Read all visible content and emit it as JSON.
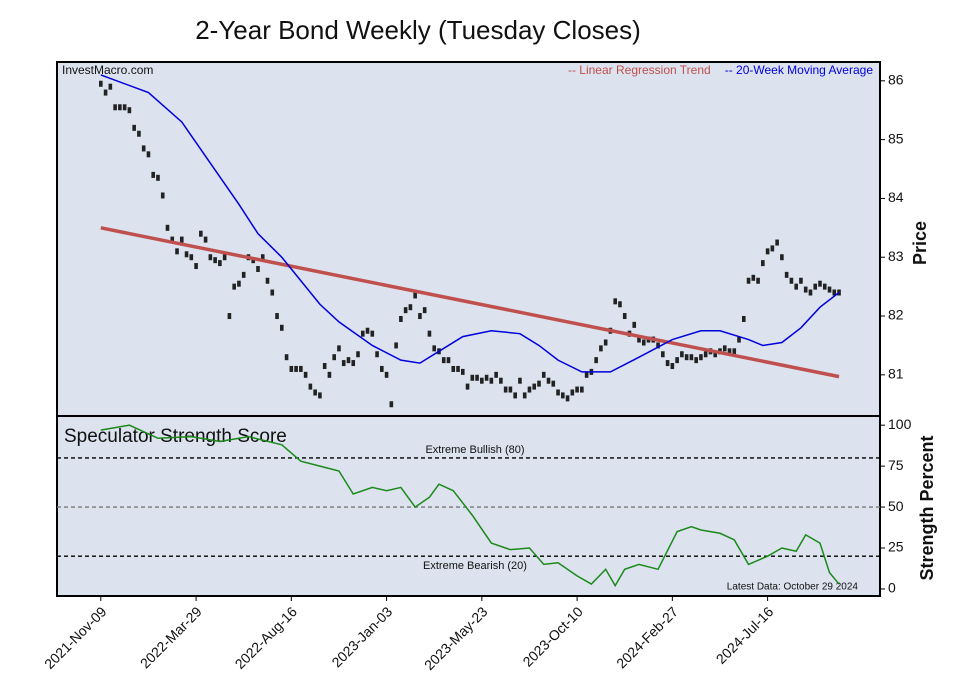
{
  "chart_data": [
    {
      "type": "candlestick",
      "title": "2-Year Bond Weekly (Tuesday Closes)",
      "annotation": "InvestMacro.com",
      "y_label": "Price",
      "xlim": [
        -9.2,
        163.6
      ],
      "ylim": [
        80.3,
        86.32
      ],
      "yticks": [
        81,
        82,
        83,
        84,
        85,
        86
      ],
      "candle_color": "#222222",
      "closes": [
        85.95,
        85.8,
        85.9,
        85.55,
        85.55,
        85.55,
        85.5,
        85.2,
        85.1,
        84.85,
        84.75,
        84.4,
        84.35,
        84.05,
        83.5,
        83.3,
        83.1,
        83.3,
        83.05,
        83.0,
        82.85,
        83.4,
        83.3,
        83.0,
        82.95,
        82.9,
        83.0,
        82.0,
        82.5,
        82.55,
        82.7,
        83.0,
        82.95,
        82.8,
        83.0,
        82.6,
        82.4,
        82.0,
        81.8,
        81.3,
        81.1,
        81.1,
        81.1,
        81.0,
        80.8,
        80.7,
        80.65,
        81.15,
        81.0,
        81.3,
        81.45,
        81.2,
        81.25,
        81.2,
        81.35,
        81.7,
        81.75,
        81.7,
        81.35,
        81.1,
        81.0,
        80.5,
        81.5,
        81.95,
        82.1,
        82.15,
        82.35,
        82.0,
        82.1,
        81.7,
        81.45,
        81.4,
        81.25,
        81.25,
        81.1,
        81.1,
        81.05,
        80.8,
        80.95,
        80.95,
        80.9,
        80.95,
        80.9,
        81.0,
        80.9,
        80.75,
        80.75,
        80.65,
        80.9,
        80.65,
        80.75,
        80.8,
        80.85,
        81.0,
        80.9,
        80.85,
        80.7,
        80.65,
        80.6,
        80.7,
        80.75,
        80.75,
        81.0,
        81.05,
        81.25,
        81.45,
        81.55,
        81.75,
        82.25,
        82.2,
        82.0,
        81.7,
        81.85,
        81.6,
        81.55,
        81.6,
        81.6,
        81.5,
        81.35,
        81.2,
        81.15,
        81.25,
        81.35,
        81.3,
        81.3,
        81.25,
        81.3,
        81.35,
        81.4,
        81.35,
        81.4,
        81.45,
        81.4,
        81.4,
        81.6,
        81.95,
        82.6,
        82.65,
        82.6,
        82.9,
        83.1,
        83.15,
        83.25,
        83.0,
        82.7,
        82.6,
        82.5,
        82.6,
        82.45,
        82.4,
        82.5,
        82.55,
        82.5,
        82.45,
        82.4,
        82.4
      ],
      "series": [
        {
          "name": "-- Linear Regression Trend",
          "color": "#c0504d",
          "x": [
            0,
            155
          ],
          "values": [
            83.5,
            80.97
          ]
        },
        {
          "name": "-- 20-Week Moving Average",
          "color": "#0000dd",
          "x": [
            0,
            10,
            17,
            23,
            29,
            33,
            38,
            42,
            46,
            50,
            57,
            63,
            67,
            71,
            76,
            82,
            88,
            92,
            96,
            101,
            107,
            113,
            120,
            126,
            130,
            136,
            139,
            143,
            147,
            151,
            155
          ],
          "values": [
            86.1,
            85.8,
            85.3,
            84.6,
            83.9,
            83.4,
            83.0,
            82.6,
            82.2,
            81.9,
            81.5,
            81.25,
            81.2,
            81.4,
            81.65,
            81.75,
            81.7,
            81.5,
            81.25,
            81.05,
            81.05,
            81.3,
            81.6,
            81.75,
            81.75,
            81.6,
            81.5,
            81.55,
            81.8,
            82.15,
            82.4
          ]
        }
      ]
    },
    {
      "type": "line",
      "title": "Speculator Strength Score",
      "annotation": "Latest Data: October 29 2024",
      "y_label": "Strength Percent",
      "xlim": [
        -9.2,
        163.6
      ],
      "ylim": [
        -4.3,
        105.6
      ],
      "yticks": [
        0,
        25,
        50,
        75,
        100
      ],
      "xticks": [
        {
          "value": 0,
          "label": "2021-Nov-09"
        },
        {
          "value": 20,
          "label": "2022-Mar-29"
        },
        {
          "value": 40,
          "label": "2022-Aug-16"
        },
        {
          "value": 60,
          "label": "2023-Jan-03"
        },
        {
          "value": 80,
          "label": "2023-May-23"
        },
        {
          "value": 100,
          "label": "2023-Oct-10"
        },
        {
          "value": 120,
          "label": "2024-Feb-27"
        },
        {
          "value": 140,
          "label": "2024-Jul-16"
        }
      ],
      "reference_lines": [
        {
          "value": 80,
          "label": "Extreme Bullish (80)",
          "color": "#000000"
        },
        {
          "value": 50,
          "color": "#777777"
        },
        {
          "value": 20,
          "label": "Extreme Bearish (20)",
          "color": "#000000"
        }
      ],
      "series": [
        {
          "color": "#1a8a1a",
          "x": [
            0,
            6,
            12,
            19,
            25,
            31,
            38,
            42,
            46,
            50,
            53,
            57,
            60,
            63,
            66,
            69,
            71,
            74,
            78,
            82,
            86,
            90,
            93,
            96,
            100,
            103,
            106,
            108,
            110,
            113,
            117,
            121,
            124,
            126,
            130,
            133,
            136,
            140,
            143,
            146,
            148,
            151,
            153,
            155
          ],
          "values": [
            97,
            100,
            92,
            93,
            90,
            93,
            88,
            78,
            75,
            72,
            58,
            62,
            60,
            62,
            50,
            56,
            64,
            60,
            45,
            28,
            24,
            25,
            15,
            16,
            8,
            3,
            12,
            2,
            12,
            15,
            12,
            35,
            38,
            36,
            34,
            30,
            15,
            20,
            25,
            23,
            33,
            28,
            10,
            3
          ]
        }
      ]
    }
  ]
}
